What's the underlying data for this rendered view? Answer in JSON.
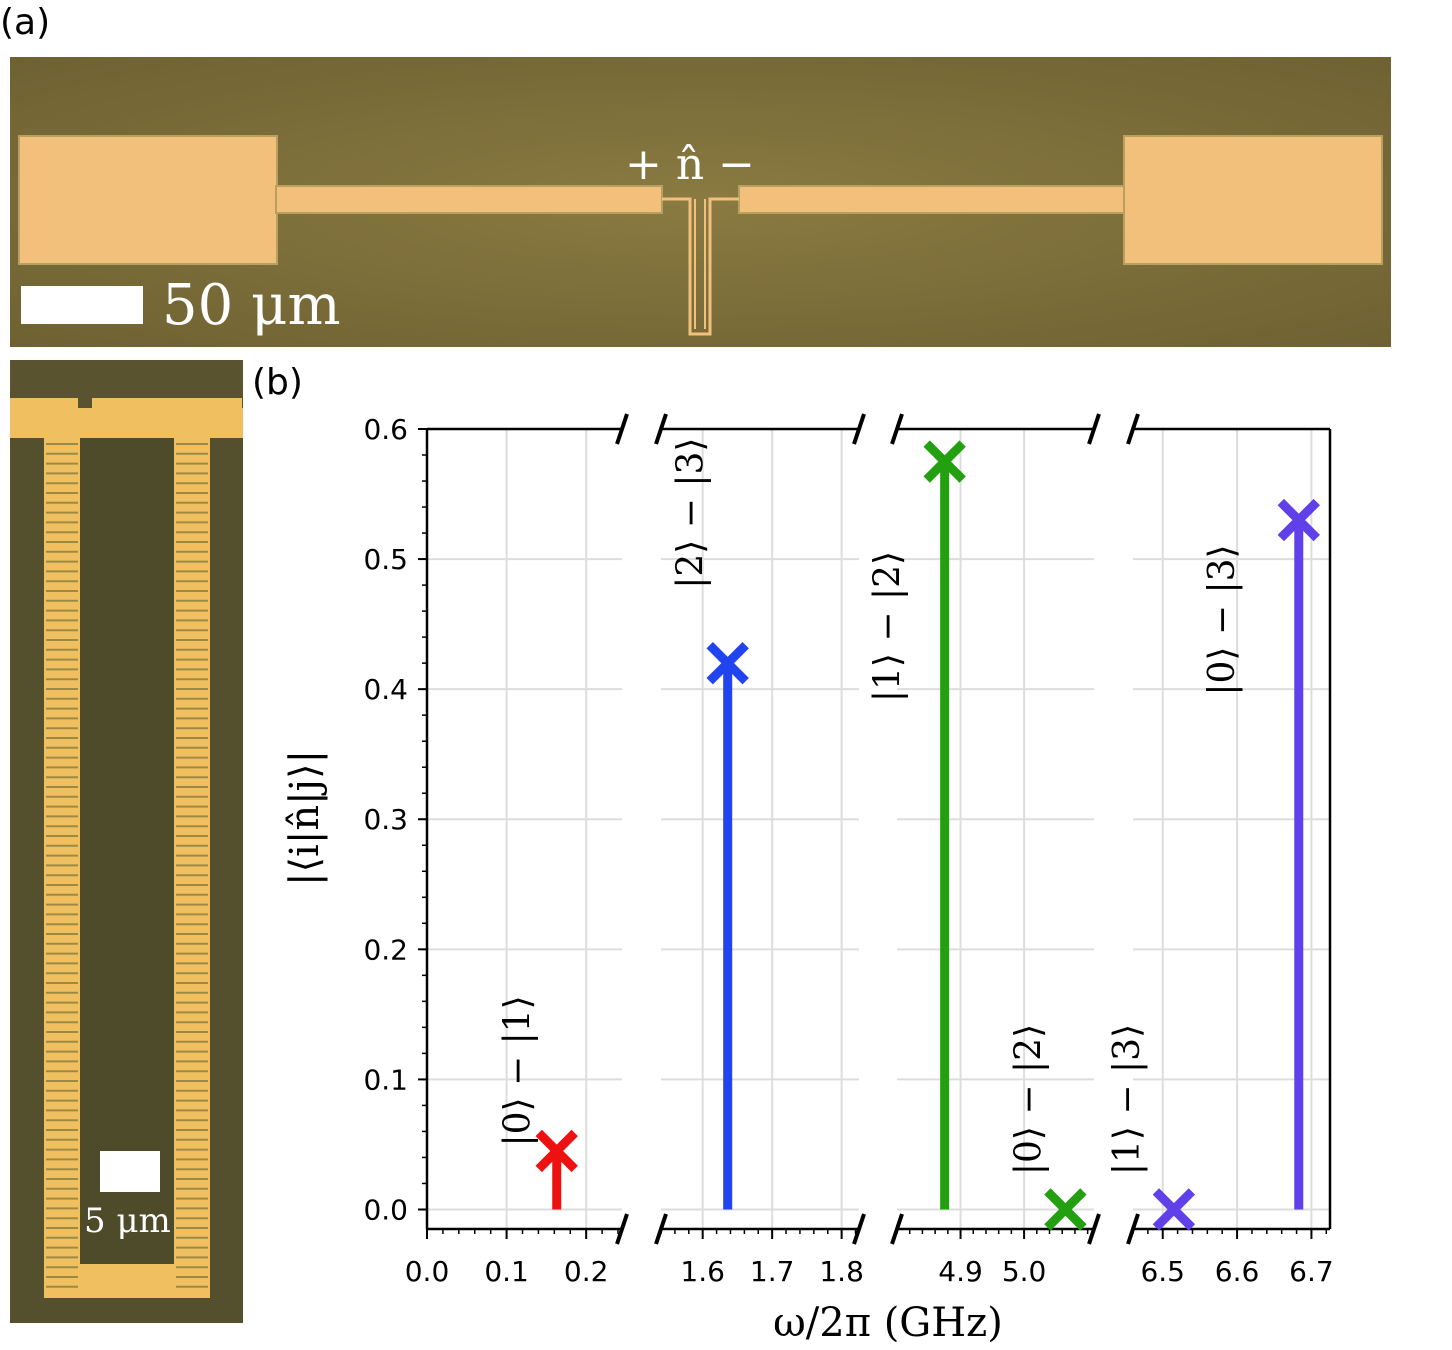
{
  "panels": {
    "a_label": "(a)",
    "b_label": "(b)"
  },
  "micrograph_top": {
    "scale_label": "50 μm",
    "port_label": "+ n̂ −"
  },
  "micrograph_left": {
    "scale_label": "5 μm"
  },
  "chart_data": {
    "type": "scatter",
    "title": "",
    "xlabel": "ω/2π (GHz)",
    "ylabel": "|⟨i|n̂|j⟩|",
    "ylim": [
      -0.015,
      0.6
    ],
    "yticks": [
      "0.0",
      "0.1",
      "0.2",
      "0.3",
      "0.4",
      "0.5",
      "0.6"
    ],
    "grid": true,
    "broken_x_axis": true,
    "segments": [
      {
        "xlim": [
          0.0,
          0.245
        ],
        "xticks": [
          "0.0",
          "0.1",
          "0.2"
        ]
      },
      {
        "xlim": [
          1.54,
          1.825
        ],
        "xticks": [
          "1.6",
          "1.7",
          "1.8"
        ]
      },
      {
        "xlim": [
          4.8,
          5.11
        ],
        "xticks": [
          "4.9",
          "5.0"
        ]
      },
      {
        "xlim": [
          6.46,
          6.725
        ],
        "xticks": [
          "6.5",
          "6.6",
          "6.7"
        ]
      }
    ],
    "series": [
      {
        "name": "|0⟩ − |1⟩",
        "x": 0.163,
        "y": 0.045,
        "color": "#ee1111",
        "segment": 0
      },
      {
        "name": "|2⟩ − |3⟩",
        "x": 1.636,
        "y": 0.42,
        "color": "#2244ee",
        "segment": 1
      },
      {
        "name": "|1⟩ − |2⟩",
        "x": 4.875,
        "y": 0.575,
        "color": "#22a010",
        "segment": 2
      },
      {
        "name": "|0⟩ − |2⟩",
        "x": 5.065,
        "y": 0.0,
        "color": "#22a010",
        "segment": 2
      },
      {
        "name": "|1⟩ − |3⟩",
        "x": 6.515,
        "y": 0.0,
        "color": "#6040e8",
        "segment": 3
      },
      {
        "name": "|0⟩ − |3⟩",
        "x": 6.683,
        "y": 0.53,
        "color": "#6040e8",
        "segment": 3
      }
    ]
  }
}
